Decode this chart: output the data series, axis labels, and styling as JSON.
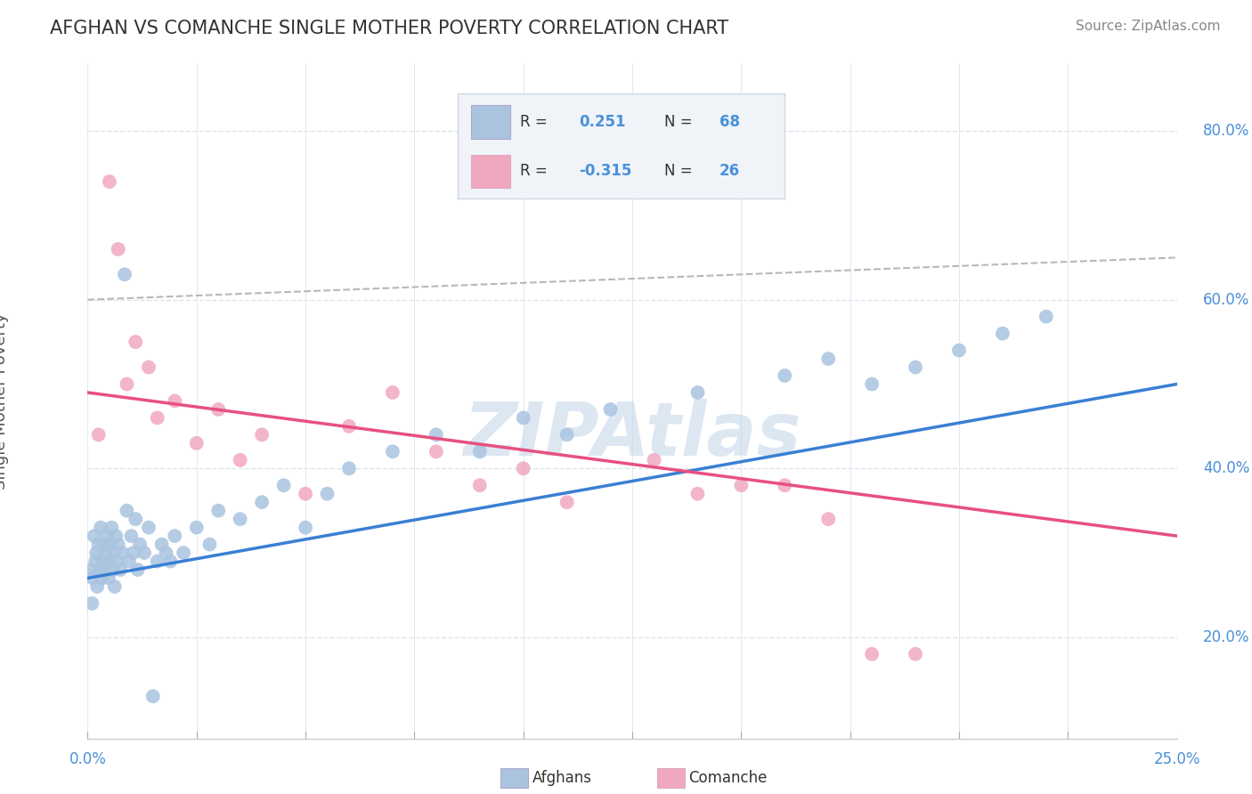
{
  "title": "AFGHAN VS COMANCHE SINGLE MOTHER POVERTY CORRELATION CHART",
  "source": "Source: ZipAtlas.com",
  "ylabel": "Single Mother Poverty",
  "xlim": [
    0.0,
    25.0
  ],
  "ylim": [
    8.0,
    88.0
  ],
  "afghans_color": "#aac4e0",
  "comanche_color": "#f0a8c0",
  "trend_blue": "#3a7fd5",
  "trend_pink": "#e85080",
  "trend_gray": "#b8b8b8",
  "watermark": "ZIPAtlas",
  "watermark_color": "#c5d8ea",
  "bg_color": "#ffffff",
  "grid_color": "#dde4ee",
  "legend_box_color": "#f0f4f8",
  "legend_border_color": "#d0d8e4",
  "text_dark": "#333333",
  "text_blue": "#4a90d9",
  "afghans_x": [
    0.08,
    0.1,
    0.12,
    0.15,
    0.18,
    0.2,
    0.22,
    0.25,
    0.28,
    0.3,
    0.32,
    0.35,
    0.38,
    0.4,
    0.42,
    0.45,
    0.48,
    0.5,
    0.52,
    0.55,
    0.58,
    0.6,
    0.62,
    0.65,
    0.68,
    0.7,
    0.75,
    0.8,
    0.85,
    0.9,
    0.95,
    1.0,
    1.05,
    1.1,
    1.15,
    1.2,
    1.3,
    1.4,
    1.5,
    1.6,
    1.7,
    1.8,
    1.9,
    2.0,
    2.2,
    2.5,
    2.8,
    3.0,
    3.5,
    4.0,
    4.5,
    5.0,
    5.5,
    6.0,
    7.0,
    8.0,
    9.0,
    10.0,
    11.0,
    12.0,
    14.0,
    16.0,
    17.0,
    18.0,
    19.0,
    20.0,
    21.0,
    22.0
  ],
  "afghans_y": [
    28,
    24,
    27,
    32,
    29,
    30,
    26,
    31,
    28,
    33,
    27,
    29,
    31,
    28,
    30,
    32,
    27,
    29,
    31,
    33,
    28,
    30,
    26,
    32,
    29,
    31,
    28,
    30,
    63,
    35,
    29,
    32,
    30,
    34,
    28,
    31,
    30,
    33,
    13,
    29,
    31,
    30,
    29,
    32,
    30,
    33,
    31,
    35,
    34,
    36,
    38,
    33,
    37,
    40,
    42,
    44,
    42,
    46,
    44,
    47,
    49,
    51,
    53,
    50,
    52,
    54,
    56,
    58
  ],
  "comanche_x": [
    0.25,
    0.5,
    0.7,
    0.9,
    1.1,
    1.4,
    1.6,
    2.0,
    2.5,
    3.0,
    3.5,
    4.0,
    5.0,
    6.0,
    7.0,
    8.0,
    9.0,
    10.0,
    11.0,
    13.0,
    14.0,
    15.0,
    16.0,
    17.0,
    18.0,
    19.0
  ],
  "comanche_y": [
    44,
    74,
    66,
    50,
    55,
    52,
    46,
    48,
    43,
    47,
    41,
    44,
    37,
    45,
    49,
    42,
    38,
    40,
    36,
    41,
    37,
    38,
    38,
    34,
    18,
    18
  ],
  "blue_trend_x0": 0.0,
  "blue_trend_y0": 27.0,
  "blue_trend_x1": 25.0,
  "blue_trend_y1": 50.0,
  "pink_trend_x0": 0.0,
  "pink_trend_y0": 49.0,
  "pink_trend_x1": 25.0,
  "pink_trend_y1": 32.0,
  "gray_trend_x0": 0.0,
  "gray_trend_y0": 60.0,
  "gray_trend_x1": 25.0,
  "gray_trend_y1": 65.0,
  "ytick_vals": [
    20,
    40,
    60,
    80
  ],
  "ytick_labels": [
    "20.0%",
    "40.0%",
    "60.0%",
    "80.0%"
  ]
}
